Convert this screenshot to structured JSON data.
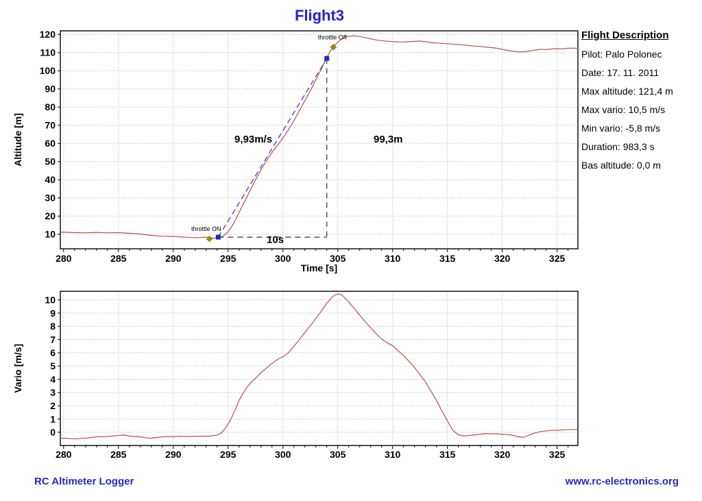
{
  "page": {
    "title": "Flight3",
    "footer_left": "RC Altimeter Logger",
    "footer_right": "www.rc-electronics.org",
    "colors": {
      "title": "#2222cc",
      "footer": "#2a2ab8",
      "curve": "#b0524e",
      "grid": "#b3b3b3",
      "axis": "#000000",
      "annotation_blue": "#3d3dcc",
      "annotation_black": "#404040",
      "marker_diamond": "#948d0e",
      "marker_square": "#2828a8"
    }
  },
  "sidebar": {
    "title": "Flight Description",
    "items": [
      "Pilot: Palo Polonec",
      "Date: 17. 11. 2011",
      "Max altitude: 121,4 m",
      "Max vario: 10,5 m/s",
      "Min vario: -5,8 m/s",
      "Duration: 983,3 s",
      "Bas altitude: 0,0 m"
    ]
  },
  "chart_data": [
    {
      "type": "line",
      "name": "altitude-chart",
      "title": "Flight3",
      "xlabel": "Time [s]",
      "ylabel": "Altitude [m]",
      "xlim": [
        279.7,
        326.9
      ],
      "ylim": [
        2,
        122
      ],
      "x_ticks": [
        280,
        285,
        290,
        295,
        300,
        305,
        310,
        315,
        320,
        325
      ],
      "y_ticks": [
        10,
        20,
        30,
        40,
        50,
        60,
        70,
        80,
        90,
        100,
        110,
        120
      ],
      "grid": true,
      "legend": "none",
      "series": [
        {
          "name": "altitude",
          "color": "#b0524e",
          "points": [
            [
              279.7,
              11.2
            ],
            [
              280.5,
              11.0
            ],
            [
              281,
              10.9
            ],
            [
              282,
              10.8
            ],
            [
              283,
              11.0
            ],
            [
              284,
              10.8
            ],
            [
              285,
              10.9
            ],
            [
              285.5,
              10.7
            ],
            [
              286,
              10.5
            ],
            [
              287,
              10.1
            ],
            [
              287.5,
              9.7
            ],
            [
              288,
              9.4
            ],
            [
              288.5,
              9.1
            ],
            [
              289,
              8.9
            ],
            [
              290,
              8.8
            ],
            [
              290.5,
              8.6
            ],
            [
              291,
              8.4
            ],
            [
              291.5,
              8.3
            ],
            [
              292,
              8.1
            ],
            [
              292.5,
              8.2
            ],
            [
              293,
              8.4
            ],
            [
              293.3,
              8.0
            ],
            [
              293.6,
              7.8
            ],
            [
              294,
              8.1
            ],
            [
              294.4,
              8.6
            ],
            [
              294.8,
              10.0
            ],
            [
              295.2,
              13.0
            ],
            [
              295.6,
              17.0
            ],
            [
              296,
              22.0
            ],
            [
              296.5,
              28.0
            ],
            [
              297,
              34.0
            ],
            [
              297.5,
              40.0
            ],
            [
              298,
              45.5
            ],
            [
              298.5,
              50.5
            ],
            [
              299,
              55.0
            ],
            [
              299.5,
              59.0
            ],
            [
              300,
              63.0
            ],
            [
              300.5,
              67.5
            ],
            [
              301,
              72.5
            ],
            [
              301.5,
              78.0
            ],
            [
              302,
              83.5
            ],
            [
              302.5,
              89.0
            ],
            [
              303,
              95.0
            ],
            [
              303.5,
              101.0
            ],
            [
              304,
              107.5
            ],
            [
              304.4,
              111.5
            ],
            [
              304.8,
              114.5
            ],
            [
              305.2,
              116.8
            ],
            [
              305.6,
              118.3
            ],
            [
              306,
              119.0
            ],
            [
              306.5,
              119.2
            ],
            [
              307,
              118.9
            ],
            [
              307.5,
              118.3
            ],
            [
              308,
              117.6
            ],
            [
              308.5,
              117.0
            ],
            [
              309,
              116.6
            ],
            [
              309.5,
              116.3
            ],
            [
              310,
              116.1
            ],
            [
              310.5,
              115.9
            ],
            [
              311,
              115.8
            ],
            [
              311.5,
              116.0
            ],
            [
              312,
              116.2
            ],
            [
              312.5,
              116.4
            ],
            [
              313,
              116.0
            ],
            [
              313.5,
              115.6
            ],
            [
              314,
              115.3
            ],
            [
              314.5,
              115.1
            ],
            [
              315,
              114.9
            ],
            [
              315.5,
              114.7
            ],
            [
              316,
              114.5
            ],
            [
              316.5,
              114.2
            ],
            [
              317,
              113.9
            ],
            [
              317.5,
              113.6
            ],
            [
              318,
              113.4
            ],
            [
              318.5,
              113.1
            ],
            [
              319,
              112.8
            ],
            [
              319.5,
              112.4
            ],
            [
              320,
              111.8
            ],
            [
              320.5,
              111.2
            ],
            [
              321,
              110.7
            ],
            [
              321.5,
              110.4
            ],
            [
              322,
              110.5
            ],
            [
              322.5,
              110.9
            ],
            [
              323,
              111.4
            ],
            [
              323.5,
              111.9
            ],
            [
              324,
              111.7
            ],
            [
              324.5,
              112.0
            ],
            [
              325,
              112.2
            ],
            [
              325.5,
              112.1
            ],
            [
              326,
              112.4
            ],
            [
              326.9,
              112.4
            ]
          ]
        }
      ],
      "annotations": {
        "lines": [
          {
            "name": "climb-rate-line",
            "x1": 294.1,
            "y1": 8.4,
            "x2": 304.0,
            "y2": 106.8,
            "color": "#3d3dcc",
            "dash": "8 5"
          },
          {
            "name": "altitude-gain-line",
            "x1": 304.0,
            "y1": 106.8,
            "x2": 304.0,
            "y2": 8.4,
            "color": "#404040",
            "dash": "8 6"
          },
          {
            "name": "duration-line",
            "x1": 294.1,
            "y1": 8.4,
            "x2": 304.0,
            "y2": 8.4,
            "color": "#404040",
            "dash": "8 6"
          }
        ],
        "markers": [
          {
            "name": "throttle-on-diamond",
            "shape": "diamond",
            "x": 293.3,
            "y": 7.5,
            "color": "#948d0e"
          },
          {
            "name": "climb-start-square",
            "shape": "square",
            "x": 294.1,
            "y": 8.4,
            "color": "#2828a8"
          },
          {
            "name": "throttle-off-diamond",
            "shape": "diamond",
            "x": 304.6,
            "y": 113.0,
            "color": "#948d0e"
          },
          {
            "name": "climb-end-square",
            "shape": "square",
            "x": 304.0,
            "y": 106.8,
            "color": "#2828a8"
          }
        ],
        "texts": [
          {
            "text": "throttle ON",
            "x": 293.0,
            "y": 11.8,
            "size": 9,
            "bold": false
          },
          {
            "text": "throttle Off",
            "x": 304.5,
            "y": 117.2,
            "size": 9,
            "bold": false
          },
          {
            "text": "9,93m/s",
            "x": 297.3,
            "y": 60.5,
            "size": 15,
            "bold": true
          },
          {
            "text": "99,3m",
            "x": 309.6,
            "y": 60.5,
            "size": 15,
            "bold": true
          },
          {
            "text": "10s",
            "x": 299.3,
            "y": 5.2,
            "size": 15,
            "bold": true
          }
        ]
      }
    },
    {
      "type": "line",
      "name": "vario-chart",
      "title": "",
      "xlabel": "",
      "ylabel": "Vario [m/s]",
      "xlim": [
        279.7,
        326.9
      ],
      "ylim": [
        -1.0,
        10.65
      ],
      "x_ticks": [
        280,
        285,
        290,
        295,
        300,
        305,
        310,
        315,
        320,
        325
      ],
      "y_ticks": [
        0,
        1,
        2,
        3,
        4,
        5,
        6,
        7,
        8,
        9,
        10
      ],
      "grid": true,
      "legend": "none",
      "series": [
        {
          "name": "vario",
          "color": "#b0524e",
          "points": [
            [
              279.7,
              -0.45
            ],
            [
              280,
              -0.45
            ],
            [
              281,
              -0.5
            ],
            [
              282,
              -0.45
            ],
            [
              283,
              -0.35
            ],
            [
              284,
              -0.32
            ],
            [
              284.5,
              -0.28
            ],
            [
              285,
              -0.25
            ],
            [
              285.5,
              -0.22
            ],
            [
              286,
              -0.28
            ],
            [
              286.5,
              -0.32
            ],
            [
              287,
              -0.35
            ],
            [
              287.5,
              -0.42
            ],
            [
              288,
              -0.45
            ],
            [
              288.5,
              -0.4
            ],
            [
              289,
              -0.35
            ],
            [
              289.5,
              -0.32
            ],
            [
              290,
              -0.33
            ],
            [
              290.5,
              -0.3
            ],
            [
              291,
              -0.32
            ],
            [
              292,
              -0.3
            ],
            [
              293,
              -0.3
            ],
            [
              293.5,
              -0.28
            ],
            [
              294,
              -0.22
            ],
            [
              294.4,
              -0.05
            ],
            [
              294.8,
              0.35
            ],
            [
              295.2,
              0.9
            ],
            [
              295.6,
              1.6
            ],
            [
              296,
              2.4
            ],
            [
              296.4,
              3.0
            ],
            [
              296.8,
              3.5
            ],
            [
              297.2,
              3.85
            ],
            [
              297.6,
              4.15
            ],
            [
              298,
              4.5
            ],
            [
              298.5,
              4.85
            ],
            [
              299,
              5.2
            ],
            [
              299.5,
              5.5
            ],
            [
              300,
              5.7
            ],
            [
              300.5,
              6.0
            ],
            [
              301,
              6.5
            ],
            [
              301.5,
              7.0
            ],
            [
              302,
              7.55
            ],
            [
              302.5,
              8.05
            ],
            [
              303,
              8.6
            ],
            [
              303.5,
              9.15
            ],
            [
              304,
              9.75
            ],
            [
              304.4,
              10.15
            ],
            [
              304.8,
              10.4
            ],
            [
              305,
              10.45
            ],
            [
              305.3,
              10.4
            ],
            [
              305.6,
              10.2
            ],
            [
              306,
              9.85
            ],
            [
              306.5,
              9.35
            ],
            [
              307,
              8.85
            ],
            [
              307.5,
              8.35
            ],
            [
              308,
              7.9
            ],
            [
              308.5,
              7.45
            ],
            [
              309,
              7.05
            ],
            [
              309.5,
              6.75
            ],
            [
              310,
              6.55
            ],
            [
              310.5,
              6.15
            ],
            [
              311,
              5.8
            ],
            [
              311.5,
              5.35
            ],
            [
              312,
              4.9
            ],
            [
              312.5,
              4.35
            ],
            [
              313,
              3.8
            ],
            [
              313.5,
              3.1
            ],
            [
              314,
              2.4
            ],
            [
              314.5,
              1.6
            ],
            [
              315,
              0.85
            ],
            [
              315.5,
              0.15
            ],
            [
              316,
              -0.2
            ],
            [
              316.5,
              -0.28
            ],
            [
              317,
              -0.25
            ],
            [
              317.5,
              -0.2
            ],
            [
              318,
              -0.15
            ],
            [
              318.5,
              -0.1
            ],
            [
              319,
              -0.12
            ],
            [
              319.5,
              -0.12
            ],
            [
              320,
              -0.15
            ],
            [
              320.5,
              -0.18
            ],
            [
              321,
              -0.25
            ],
            [
              321.5,
              -0.35
            ],
            [
              322,
              -0.38
            ],
            [
              322.5,
              -0.2
            ],
            [
              323,
              -0.05
            ],
            [
              323.5,
              0.05
            ],
            [
              324,
              0.1
            ],
            [
              324.5,
              0.15
            ],
            [
              325,
              0.15
            ],
            [
              325.5,
              0.18
            ],
            [
              326,
              0.2
            ],
            [
              326.9,
              0.2
            ]
          ]
        }
      ],
      "annotations": {
        "lines": [],
        "markers": [],
        "texts": []
      }
    }
  ]
}
